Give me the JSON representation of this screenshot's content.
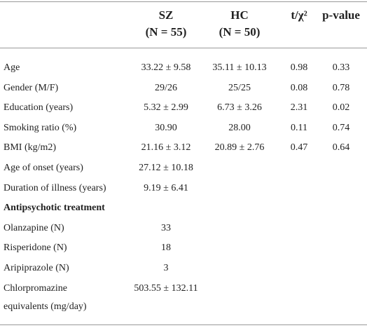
{
  "table": {
    "header": [
      [
        "SZ",
        "(N = 55)"
      ],
      [
        "HC",
        "(N = 50)"
      ],
      [
        "t/χ²"
      ],
      [
        "p-value"
      ]
    ],
    "rows": [
      [
        "Age",
        "33.22 ± 9.58",
        "35.11 ± 10.13",
        "0.98",
        "0.33"
      ],
      [
        "Gender (M/F)",
        "29/26",
        "25/25",
        "0.08",
        "0.78"
      ],
      [
        "Education (years)",
        "5.32 ± 2.99",
        "6.73 ± 3.26",
        "2.31",
        "0.02"
      ],
      [
        "Smoking ratio (%)",
        "30.90",
        "28.00",
        "0.11",
        "0.74"
      ],
      [
        "BMI (kg/m2)",
        "21.16 ± 3.12",
        "20.89 ± 2.76",
        "0.47",
        "0.64"
      ],
      [
        "Age of onset (years)",
        "27.12 ± 10.18"
      ],
      [
        "Duration of illness (years)",
        "9.19 ± 6.41"
      ]
    ],
    "section": {
      "title": "Antipsychotic treatment",
      "rows": [
        [
          [
            "Olanzapine (N)"
          ],
          "33"
        ],
        [
          [
            "Risperidone (N)"
          ],
          "18"
        ],
        [
          [
            "Aripiprazole (N)"
          ],
          "3"
        ],
        [
          [
            "Chlorpromazine",
            "equivalents (mg/day)"
          ],
          "503.55 ± 132.11"
        ]
      ]
    }
  }
}
